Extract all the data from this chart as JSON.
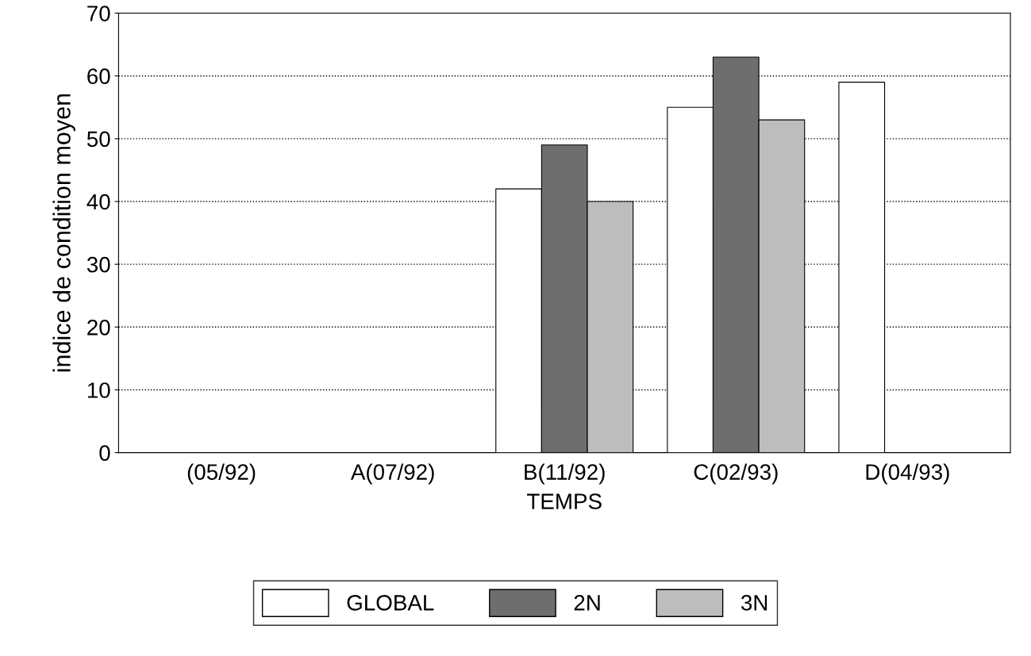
{
  "chart_data": {
    "type": "bar",
    "xlabel": "TEMPS",
    "ylabel": "indice de condition moyen",
    "categories": [
      "(05/92)",
      "A(07/92)",
      "B(11/92)",
      "C(02/93)",
      "D(04/93)"
    ],
    "series": [
      {
        "name": "GLOBAL",
        "color": "#ffffff",
        "values": [
          null,
          null,
          42,
          55,
          59
        ]
      },
      {
        "name": "2N",
        "color": "#6e6e6e",
        "values": [
          null,
          null,
          49,
          63,
          null
        ]
      },
      {
        "name": "3N",
        "color": "#bdbdbd",
        "values": [
          null,
          null,
          40,
          53,
          null
        ]
      }
    ],
    "ylim": [
      0,
      70
    ],
    "yticks": [
      0,
      10,
      20,
      30,
      40,
      50,
      60,
      70
    ],
    "grid": "y",
    "legend": "bottom"
  }
}
